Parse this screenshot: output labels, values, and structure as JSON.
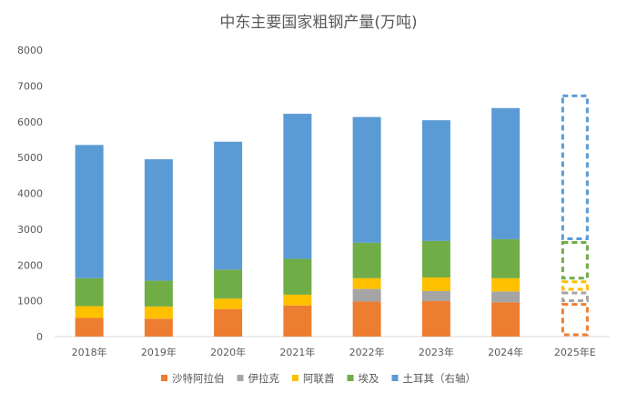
{
  "chart_data": {
    "type": "bar",
    "stacked": true,
    "title": "中东主要国家粗钢产量(万吨)",
    "categories": [
      "2018年",
      "2019年",
      "2020年",
      "2021年",
      "2022年",
      "2023年",
      "2024年",
      "2025年E"
    ],
    "ylim": [
      0,
      8000
    ],
    "yticks": [
      0,
      1000,
      2000,
      3000,
      4000,
      5000,
      6000,
      7000,
      8000
    ],
    "grid": false,
    "legend_position": "bottom",
    "estimated_category": "2025年E",
    "estimated_style": "dashed-outline",
    "series": [
      {
        "name": "沙特阿拉伯",
        "color": "#ED7D31",
        "values": [
          520,
          500,
          770,
          870,
          980,
          990,
          960,
          950
        ]
      },
      {
        "name": "伊拉克",
        "color": "#A5A5A5",
        "values": [
          0,
          0,
          0,
          0,
          350,
          280,
          300,
          320
        ]
      },
      {
        "name": "阿联酋",
        "color": "#FFC000",
        "values": [
          330,
          340,
          290,
          300,
          300,
          380,
          370,
          310
        ]
      },
      {
        "name": "埃及",
        "color": "#70AD47",
        "values": [
          780,
          720,
          810,
          1000,
          990,
          1020,
          1090,
          1100
        ]
      },
      {
        "name": "土耳其（右轴）",
        "color": "#5B9BD5",
        "values": [
          3720,
          3390,
          3570,
          4050,
          3510,
          3370,
          3660,
          4090
        ]
      }
    ]
  }
}
